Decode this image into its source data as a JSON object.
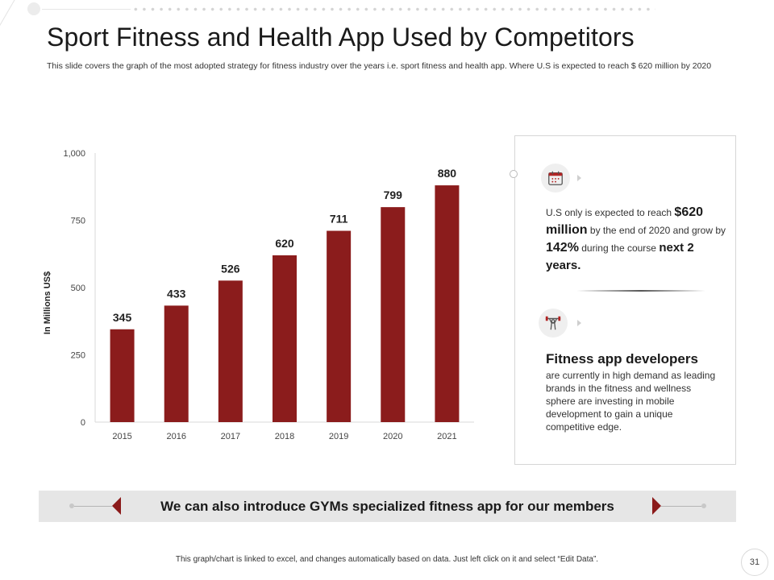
{
  "slide": {
    "title": "Sport Fitness and Health App Used by Competitors",
    "subtitle": "This slide covers the graph of the most adopted strategy for fitness industry over the years i.e. sport fitness and health app. Where U.S is expected to reach $ 620 million by 2020",
    "page_number": "31",
    "footer_note": "This graph/chart is linked to excel, and changes automatically based on data. Just left click on it and select “Edit Data”."
  },
  "chart_data": {
    "type": "bar",
    "title": "",
    "xlabel": "",
    "ylabel": "In Millions US$",
    "categories": [
      "2015",
      "2016",
      "2017",
      "2018",
      "2019",
      "2020",
      "2021"
    ],
    "values": [
      345,
      433,
      526,
      620,
      711,
      799,
      880
    ],
    "data_labels": [
      "345",
      "433",
      "526",
      "620",
      "711",
      "799",
      "880"
    ],
    "ylim": [
      0,
      1000
    ],
    "yticks": [
      0,
      250,
      500,
      750,
      1000
    ],
    "ytick_labels": [
      "0",
      "250",
      "500",
      "750",
      "1,000"
    ],
    "bar_color": "#8b1c1c",
    "grid": false,
    "legend": "none"
  },
  "callouts": {
    "first": {
      "icon": "calendar-icon",
      "pre": "U.S only is expected  to reach ",
      "highlight1": "$620 million",
      "mid1": " by the end of 2020 and grow by ",
      "highlight2": "142%",
      "mid2": " during the course ",
      "highlight3": "next 2 years."
    },
    "second": {
      "icon": "weightlifter-icon",
      "heading": "Fitness app developers",
      "body": "are currently in high demand as leading brands in the fitness and wellness sphere are investing in mobile development to gain a unique competitive edge."
    }
  },
  "banner": {
    "text": "We can also introduce GYMs specialized fitness app for our members",
    "accent_color": "#8b1a1a"
  }
}
